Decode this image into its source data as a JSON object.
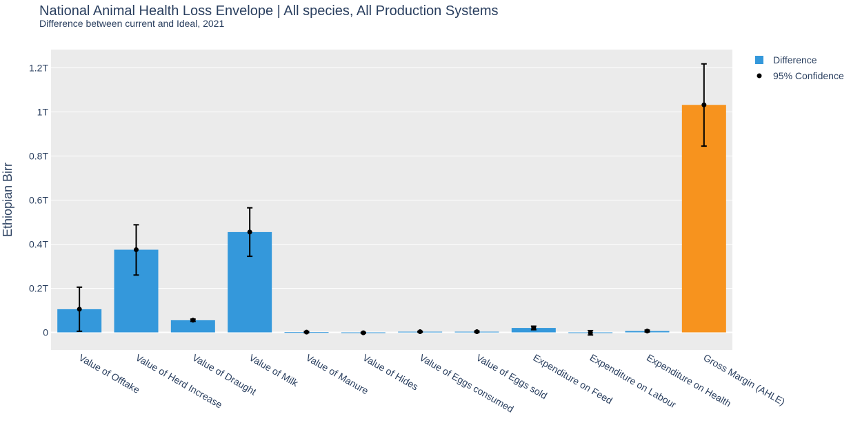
{
  "chart_data": {
    "type": "bar",
    "title": "National Animal Health Loss Envelope | All species, All Production Systems",
    "subtitle": "Difference between current and Ideal, 2021",
    "xlabel": "",
    "ylabel": "Ethiopian Birr",
    "ylim": [
      -0.08,
      1.29
    ],
    "yticks": [
      0,
      0.2,
      0.4,
      0.6,
      0.8,
      1.0,
      1.2
    ],
    "ytick_labels": [
      "0",
      "0.2T",
      "0.4T",
      "0.6T",
      "0.8T",
      "1T",
      "1.2T"
    ],
    "categories": [
      "Value of Offtake",
      "Value of Herd Increase",
      "Value of Draught",
      "Value of Milk",
      "Value of Manure",
      "Value of Hides",
      "Value of Eggs consumed",
      "Value of Eggs sold",
      "Expenditure on Feed",
      "Expenditure on Labour",
      "Expenditure on Health",
      "Gross Margin (AHLE)"
    ],
    "series": [
      {
        "name": "Difference",
        "values": [
          0.105,
          0.375,
          0.055,
          0.455,
          0.001,
          0.0,
          0.003,
          0.003,
          0.02,
          0.0,
          0.006,
          1.032
        ],
        "colors": [
          "#3498db",
          "#3498db",
          "#3498db",
          "#3498db",
          "#3498db",
          "#3498db",
          "#3498db",
          "#3498db",
          "#3498db",
          "#3498db",
          "#3498db",
          "#f7931e"
        ]
      },
      {
        "name": "95% Confidence",
        "type": "errorbar",
        "values": [
          0.105,
          0.375,
          0.055,
          0.455,
          0.001,
          -0.002,
          0.003,
          0.003,
          0.02,
          -0.002,
          0.006,
          1.032
        ],
        "lower": [
          0.005,
          0.26,
          0.05,
          0.345,
          -0.002,
          -0.004,
          0.001,
          0.0,
          0.012,
          -0.012,
          0.002,
          0.845
        ],
        "upper": [
          0.205,
          0.488,
          0.06,
          0.565,
          0.004,
          0.0,
          0.005,
          0.006,
          0.028,
          0.008,
          0.01,
          1.218
        ]
      }
    ],
    "legend": {
      "position": "top-right",
      "items": [
        {
          "label": "Difference",
          "color": "#3498db",
          "marker": "square"
        },
        {
          "label": "95% Confidence",
          "color": "#000000",
          "marker": "circle"
        }
      ]
    },
    "colors": {
      "plot_bg": "#ebebeb",
      "grid": "#ffffff",
      "text": "#2a3f5f",
      "bar": "#3498db",
      "highlight": "#f7931e",
      "error": "#000000"
    }
  }
}
